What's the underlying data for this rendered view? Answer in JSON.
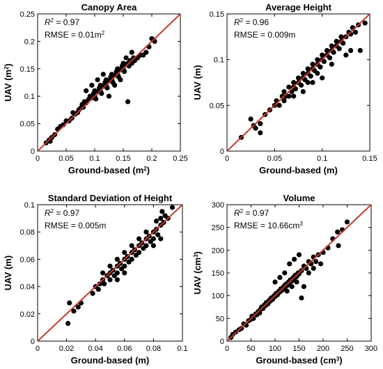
{
  "figure": {
    "marker_color": "#000000",
    "line_color": "#c0392b"
  },
  "chart_data": [
    {
      "type": "scatter",
      "title": "Canopy Area",
      "xlabel": "Ground-based (m²)",
      "ylabel": "UAV (m²)",
      "xlim": [
        0,
        0.25
      ],
      "ylim": [
        0,
        0.25
      ],
      "xticks": [
        0,
        0.05,
        0.1,
        0.15,
        0.2,
        0.25
      ],
      "yticks": [
        0,
        0.05,
        0.1,
        0.15,
        0.2,
        0.25
      ],
      "xtick_labels": [
        "0",
        "0.05",
        "0.1",
        "0.15",
        "0.2",
        "0.25"
      ],
      "ytick_labels": [
        "0",
        "0.05",
        "0.1",
        "0.15",
        "0.2",
        "0.25"
      ],
      "stats": {
        "r2_prefix": "R",
        "r2_sup": "2",
        "r2_value": " = 0.97",
        "rmse_label": "RMSE = ",
        "rmse_value": "0.01m",
        "rmse_sup": "2"
      },
      "reference_line": [
        [
          0,
          0
        ],
        [
          0.25,
          0.25
        ]
      ],
      "points": [
        [
          0.015,
          0.015
        ],
        [
          0.02,
          0.02
        ],
        [
          0.022,
          0.018
        ],
        [
          0.025,
          0.025
        ],
        [
          0.03,
          0.03
        ],
        [
          0.035,
          0.04
        ],
        [
          0.04,
          0.045
        ],
        [
          0.045,
          0.048
        ],
        [
          0.05,
          0.055
        ],
        [
          0.055,
          0.055
        ],
        [
          0.06,
          0.06
        ],
        [
          0.062,
          0.07
        ],
        [
          0.065,
          0.067
        ],
        [
          0.07,
          0.07
        ],
        [
          0.072,
          0.075
        ],
        [
          0.075,
          0.078
        ],
        [
          0.078,
          0.085
        ],
        [
          0.08,
          0.08
        ],
        [
          0.082,
          0.09
        ],
        [
          0.085,
          0.088
        ],
        [
          0.088,
          0.092
        ],
        [
          0.09,
          0.095
        ],
        [
          0.092,
          0.1
        ],
        [
          0.095,
          0.097
        ],
        [
          0.098,
          0.105
        ],
        [
          0.1,
          0.1
        ],
        [
          0.1,
          0.11
        ],
        [
          0.102,
          0.095
        ],
        [
          0.105,
          0.108
        ],
        [
          0.108,
          0.115
        ],
        [
          0.11,
          0.11
        ],
        [
          0.11,
          0.12
        ],
        [
          0.112,
          0.105
        ],
        [
          0.115,
          0.118
        ],
        [
          0.118,
          0.125
        ],
        [
          0.12,
          0.12
        ],
        [
          0.12,
          0.13
        ],
        [
          0.122,
          0.115
        ],
        [
          0.125,
          0.128
        ],
        [
          0.128,
          0.135
        ],
        [
          0.13,
          0.13
        ],
        [
          0.13,
          0.14
        ],
        [
          0.132,
          0.125
        ],
        [
          0.135,
          0.138
        ],
        [
          0.138,
          0.145
        ],
        [
          0.14,
          0.14
        ],
        [
          0.14,
          0.15
        ],
        [
          0.142,
          0.135
        ],
        [
          0.145,
          0.148
        ],
        [
          0.148,
          0.155
        ],
        [
          0.15,
          0.15
        ],
        [
          0.15,
          0.16
        ],
        [
          0.152,
          0.145
        ],
        [
          0.155,
          0.158
        ],
        [
          0.158,
          0.16
        ],
        [
          0.16,
          0.155
        ],
        [
          0.162,
          0.165
        ],
        [
          0.165,
          0.16
        ],
        [
          0.168,
          0.17
        ],
        [
          0.17,
          0.165
        ],
        [
          0.175,
          0.17
        ],
        [
          0.18,
          0.175
        ],
        [
          0.185,
          0.175
        ],
        [
          0.19,
          0.18
        ],
        [
          0.195,
          0.19
        ],
        [
          0.2,
          0.205
        ],
        [
          0.205,
          0.2
        ],
        [
          0.158,
          0.09
        ],
        [
          0.085,
          0.11
        ],
        [
          0.095,
          0.12
        ],
        [
          0.115,
          0.14
        ],
        [
          0.125,
          0.1
        ],
        [
          0.135,
          0.12
        ],
        [
          0.105,
          0.13
        ],
        [
          0.145,
          0.13
        ],
        [
          0.155,
          0.17
        ],
        [
          0.165,
          0.18
        ]
      ]
    },
    {
      "type": "scatter",
      "title": "Average Height",
      "xlabel": "Ground-based (m)",
      "ylabel": "UAV (m)",
      "xlim": [
        0,
        0.15
      ],
      "ylim": [
        0,
        0.15
      ],
      "xticks": [
        0,
        0.05,
        0.1,
        0.15
      ],
      "yticks": [
        0,
        0.05,
        0.1,
        0.15
      ],
      "xtick_labels": [
        "0",
        "0.05",
        "0.1",
        "0.15"
      ],
      "ytick_labels": [
        "0",
        "0.05",
        "0.1",
        "0.15"
      ],
      "stats": {
        "r2_prefix": "R",
        "r2_sup": "2",
        "r2_value": " = 0.96",
        "rmse_label": "RMSE = ",
        "rmse_value": "0.009m",
        "rmse_sup": ""
      },
      "reference_line": [
        [
          0,
          0
        ],
        [
          0.15,
          0.15
        ]
      ],
      "points": [
        [
          0.015,
          0.015
        ],
        [
          0.025,
          0.035
        ],
        [
          0.028,
          0.028
        ],
        [
          0.03,
          0.025
        ],
        [
          0.035,
          0.03
        ],
        [
          0.035,
          0.02
        ],
        [
          0.04,
          0.04
        ],
        [
          0.045,
          0.045
        ],
        [
          0.05,
          0.05
        ],
        [
          0.052,
          0.055
        ],
        [
          0.055,
          0.05
        ],
        [
          0.058,
          0.06
        ],
        [
          0.06,
          0.055
        ],
        [
          0.06,
          0.065
        ],
        [
          0.062,
          0.06
        ],
        [
          0.065,
          0.07
        ],
        [
          0.065,
          0.06
        ],
        [
          0.068,
          0.065
        ],
        [
          0.07,
          0.07
        ],
        [
          0.07,
          0.075
        ],
        [
          0.072,
          0.068
        ],
        [
          0.075,
          0.075
        ],
        [
          0.075,
          0.08
        ],
        [
          0.078,
          0.072
        ],
        [
          0.08,
          0.08
        ],
        [
          0.08,
          0.085
        ],
        [
          0.082,
          0.078
        ],
        [
          0.085,
          0.085
        ],
        [
          0.085,
          0.09
        ],
        [
          0.088,
          0.082
        ],
        [
          0.09,
          0.09
        ],
        [
          0.09,
          0.095
        ],
        [
          0.092,
          0.088
        ],
        [
          0.095,
          0.095
        ],
        [
          0.095,
          0.1
        ],
        [
          0.098,
          0.092
        ],
        [
          0.1,
          0.1
        ],
        [
          0.1,
          0.105
        ],
        [
          0.102,
          0.098
        ],
        [
          0.105,
          0.105
        ],
        [
          0.105,
          0.11
        ],
        [
          0.108,
          0.102
        ],
        [
          0.11,
          0.11
        ],
        [
          0.11,
          0.115
        ],
        [
          0.112,
          0.108
        ],
        [
          0.115,
          0.115
        ],
        [
          0.115,
          0.12
        ],
        [
          0.118,
          0.112
        ],
        [
          0.12,
          0.12
        ],
        [
          0.12,
          0.125
        ],
        [
          0.122,
          0.118
        ],
        [
          0.125,
          0.125
        ],
        [
          0.128,
          0.13
        ],
        [
          0.13,
          0.128
        ],
        [
          0.132,
          0.135
        ],
        [
          0.135,
          0.13
        ],
        [
          0.138,
          0.138
        ],
        [
          0.14,
          0.11
        ],
        [
          0.145,
          0.14
        ],
        [
          0.13,
          0.11
        ],
        [
          0.125,
          0.105
        ],
        [
          0.11,
          0.095
        ],
        [
          0.1,
          0.08
        ],
        [
          0.09,
          0.075
        ],
        [
          0.08,
          0.065
        ],
        [
          0.07,
          0.06
        ],
        [
          0.095,
          0.085
        ],
        [
          0.085,
          0.075
        ]
      ]
    },
    {
      "type": "scatter",
      "title": "Standard Deviation of Height",
      "xlabel": "Ground-based (m)",
      "ylabel": "UAV (m)",
      "xlim": [
        0,
        0.1
      ],
      "ylim": [
        0,
        0.1
      ],
      "xticks": [
        0,
        0.02,
        0.04,
        0.06,
        0.08,
        0.1
      ],
      "yticks": [
        0,
        0.02,
        0.04,
        0.06,
        0.08,
        0.1
      ],
      "xtick_labels": [
        "0",
        "0.02",
        "0.04",
        "0.06",
        "0.08",
        "0.1"
      ],
      "ytick_labels": [
        "0",
        "0.02",
        "0.04",
        "0.06",
        "0.08",
        "0.1"
      ],
      "stats": {
        "r2_prefix": "R",
        "r2_sup": "2",
        "r2_value": " = 0.97",
        "rmse_label": "RMSE = ",
        "rmse_value": "0.005m",
        "rmse_sup": ""
      },
      "reference_line": [
        [
          0,
          0
        ],
        [
          0.1,
          0.1
        ]
      ],
      "points": [
        [
          0.021,
          0.013
        ],
        [
          0.022,
          0.028
        ],
        [
          0.025,
          0.022
        ],
        [
          0.028,
          0.025
        ],
        [
          0.03,
          0.028
        ],
        [
          0.038,
          0.035
        ],
        [
          0.04,
          0.04
        ],
        [
          0.042,
          0.038
        ],
        [
          0.043,
          0.042
        ],
        [
          0.045,
          0.045
        ],
        [
          0.046,
          0.042
        ],
        [
          0.048,
          0.048
        ],
        [
          0.05,
          0.05
        ],
        [
          0.05,
          0.045
        ],
        [
          0.052,
          0.052
        ],
        [
          0.053,
          0.048
        ],
        [
          0.055,
          0.055
        ],
        [
          0.055,
          0.05
        ],
        [
          0.057,
          0.057
        ],
        [
          0.058,
          0.053
        ],
        [
          0.06,
          0.06
        ],
        [
          0.06,
          0.055
        ],
        [
          0.062,
          0.062
        ],
        [
          0.063,
          0.058
        ],
        [
          0.065,
          0.065
        ],
        [
          0.065,
          0.06
        ],
        [
          0.067,
          0.067
        ],
        [
          0.068,
          0.063
        ],
        [
          0.07,
          0.07
        ],
        [
          0.07,
          0.065
        ],
        [
          0.072,
          0.072
        ],
        [
          0.073,
          0.068
        ],
        [
          0.075,
          0.075
        ],
        [
          0.075,
          0.07
        ],
        [
          0.077,
          0.077
        ],
        [
          0.078,
          0.073
        ],
        [
          0.08,
          0.08
        ],
        [
          0.08,
          0.075
        ],
        [
          0.082,
          0.082
        ],
        [
          0.083,
          0.078
        ],
        [
          0.085,
          0.085
        ],
        [
          0.085,
          0.09
        ],
        [
          0.087,
          0.087
        ],
        [
          0.088,
          0.092
        ],
        [
          0.09,
          0.09
        ],
        [
          0.093,
          0.098
        ],
        [
          0.086,
          0.095
        ],
        [
          0.082,
          0.088
        ],
        [
          0.06,
          0.065
        ],
        [
          0.055,
          0.06
        ],
        [
          0.05,
          0.055
        ],
        [
          0.045,
          0.05
        ],
        [
          0.065,
          0.07
        ],
        [
          0.07,
          0.075
        ],
        [
          0.075,
          0.08
        ],
        [
          0.08,
          0.07
        ],
        [
          0.085,
          0.075
        ],
        [
          0.06,
          0.05
        ],
        [
          0.055,
          0.045
        ]
      ]
    },
    {
      "type": "scatter",
      "title": "Volume",
      "xlabel": "Ground-based (cm³)",
      "ylabel": "UAV (cm³)",
      "xlim": [
        0,
        300
      ],
      "ylim": [
        0,
        300
      ],
      "xticks": [
        0,
        50,
        100,
        150,
        200,
        250,
        300
      ],
      "yticks": [
        0,
        50,
        100,
        150,
        200,
        250,
        300
      ],
      "xtick_labels": [
        "0",
        "50",
        "100",
        "150",
        "200",
        "250",
        "300"
      ],
      "ytick_labels": [
        "0",
        "50",
        "100",
        "150",
        "200",
        "250",
        "300"
      ],
      "stats": {
        "r2_prefix": "R",
        "r2_sup": "2",
        "r2_value": " = 0.97",
        "rmse_label": "RMSE = ",
        "rmse_value": "10.66cm",
        "rmse_sup": "3"
      },
      "reference_line": [
        [
          0,
          0
        ],
        [
          300,
          300
        ]
      ],
      "points": [
        [
          8,
          8
        ],
        [
          12,
          15
        ],
        [
          18,
          20
        ],
        [
          25,
          25
        ],
        [
          30,
          28
        ],
        [
          35,
          38
        ],
        [
          40,
          35
        ],
        [
          45,
          45
        ],
        [
          50,
          48
        ],
        [
          52,
          55
        ],
        [
          55,
          50
        ],
        [
          60,
          60
        ],
        [
          62,
          58
        ],
        [
          65,
          65
        ],
        [
          68,
          62
        ],
        [
          70,
          70
        ],
        [
          72,
          75
        ],
        [
          75,
          72
        ],
        [
          78,
          80
        ],
        [
          80,
          78
        ],
        [
          82,
          85
        ],
        [
          85,
          82
        ],
        [
          88,
          90
        ],
        [
          90,
          88
        ],
        [
          92,
          95
        ],
        [
          95,
          92
        ],
        [
          98,
          100
        ],
        [
          100,
          98
        ],
        [
          102,
          105
        ],
        [
          105,
          102
        ],
        [
          108,
          110
        ],
        [
          110,
          108
        ],
        [
          112,
          115
        ],
        [
          115,
          112
        ],
        [
          118,
          120
        ],
        [
          120,
          118
        ],
        [
          122,
          125
        ],
        [
          125,
          122
        ],
        [
          128,
          130
        ],
        [
          130,
          128
        ],
        [
          132,
          135
        ],
        [
          135,
          132
        ],
        [
          138,
          140
        ],
        [
          140,
          138
        ],
        [
          142,
          145
        ],
        [
          145,
          142
        ],
        [
          148,
          150
        ],
        [
          150,
          148
        ],
        [
          155,
          155
        ],
        [
          160,
          165
        ],
        [
          165,
          160
        ],
        [
          170,
          175
        ],
        [
          175,
          170
        ],
        [
          180,
          185
        ],
        [
          185,
          175
        ],
        [
          190,
          190
        ],
        [
          200,
          195
        ],
        [
          210,
          205
        ],
        [
          220,
          225
        ],
        [
          230,
          240
        ],
        [
          240,
          245
        ],
        [
          250,
          262
        ],
        [
          232,
          210
        ],
        [
          155,
          95
        ],
        [
          160,
          120
        ],
        [
          120,
          150
        ],
        [
          110,
          140
        ],
        [
          100,
          130
        ],
        [
          130,
          170
        ],
        [
          140,
          180
        ],
        [
          150,
          190
        ],
        [
          125,
          110
        ],
        [
          135,
          120
        ],
        [
          145,
          130
        ],
        [
          170,
          150
        ],
        [
          180,
          160
        ],
        [
          195,
          170
        ]
      ]
    }
  ]
}
